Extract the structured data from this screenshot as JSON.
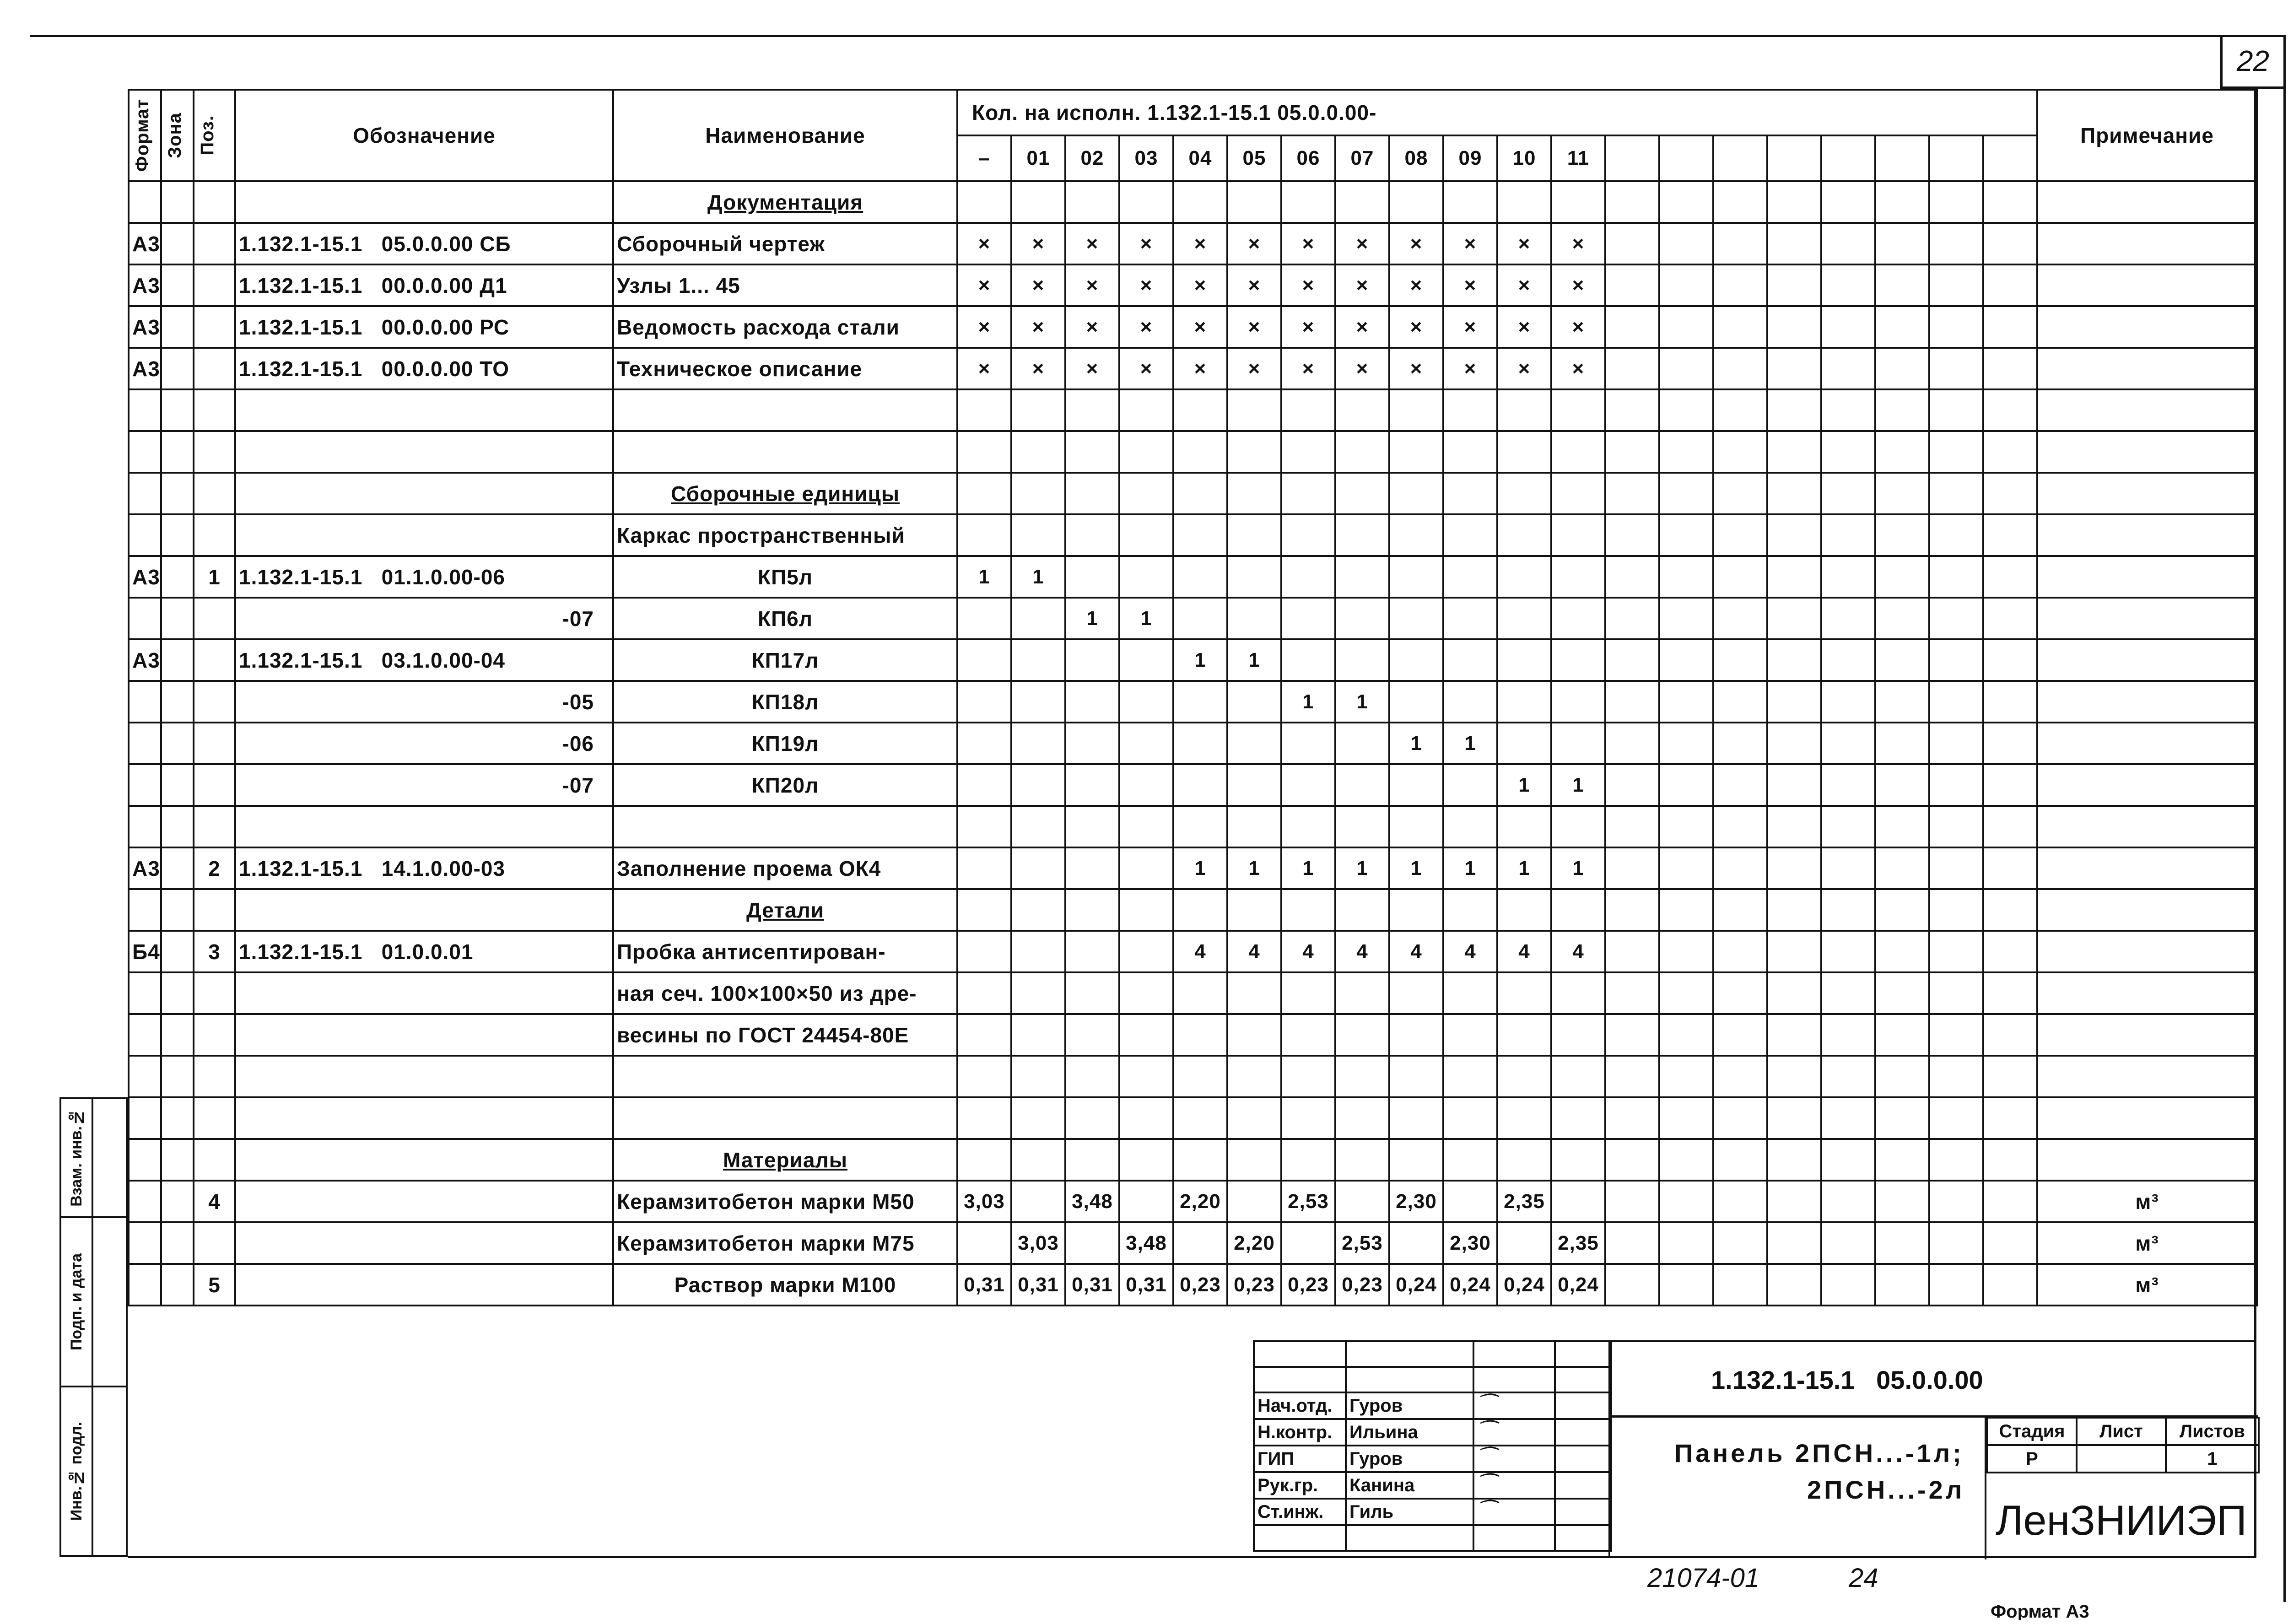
{
  "sheet_number": "22",
  "header": {
    "format": "Формат",
    "zone": "Зона",
    "pos": "Поз.",
    "designation": "Обозначение",
    "name": "Наименование",
    "qty_title": "Кол. на исполн. 1.132.1-15.1 05.0.0.00-",
    "variants": [
      "–",
      "01",
      "02",
      "03",
      "04",
      "05",
      "06",
      "07",
      "08",
      "09",
      "10",
      "11"
    ],
    "note": "Примечание"
  },
  "rows": [
    {
      "name": "Документация",
      "section": true
    },
    {
      "format": "А3",
      "code": "1.132.1-15.1   05.0.0.00 СБ",
      "name": "Сборочный чертеж",
      "qty": [
        "×",
        "×",
        "×",
        "×",
        "×",
        "×",
        "×",
        "×",
        "×",
        "×",
        "×",
        "×"
      ]
    },
    {
      "format": "А3",
      "code": "1.132.1-15.1   00.0.0.00 Д1",
      "name": "Узлы 1... 45",
      "qty": [
        "×",
        "×",
        "×",
        "×",
        "×",
        "×",
        "×",
        "×",
        "×",
        "×",
        "×",
        "×"
      ]
    },
    {
      "format": "А3",
      "code": "1.132.1-15.1   00.0.0.00 РС",
      "name": "Ведомость расхода стали",
      "qty": [
        "×",
        "×",
        "×",
        "×",
        "×",
        "×",
        "×",
        "×",
        "×",
        "×",
        "×",
        "×"
      ]
    },
    {
      "format": "А3",
      "code": "1.132.1-15.1   00.0.0.00 ТО",
      "name": "Техническое описание",
      "qty": [
        "×",
        "×",
        "×",
        "×",
        "×",
        "×",
        "×",
        "×",
        "×",
        "×",
        "×",
        "×"
      ]
    },
    {},
    {},
    {
      "name": "Сборочные единицы",
      "section": true
    },
    {
      "name": "Каркас пространственный"
    },
    {
      "format": "А3",
      "pos": "1",
      "code": "1.132.1-15.1   01.1.0.00-06",
      "name": "КП5л",
      "center": true,
      "qty": [
        "1",
        "1",
        "",
        "",
        "",
        "",
        "",
        "",
        "",
        "",
        "",
        ""
      ]
    },
    {
      "code": "-07",
      "right": true,
      "name": "КП6л",
      "center": true,
      "qty": [
        "",
        "",
        "1",
        "1",
        "",
        "",
        "",
        "",
        "",
        "",
        "",
        ""
      ]
    },
    {
      "format": "А3",
      "code": "1.132.1-15.1   03.1.0.00-04",
      "name": "КП17л",
      "center": true,
      "qty": [
        "",
        "",
        "",
        "",
        "1",
        "1",
        "",
        "",
        "",
        "",
        "",
        ""
      ]
    },
    {
      "code": "-05",
      "right": true,
      "name": "КП18л",
      "center": true,
      "qty": [
        "",
        "",
        "",
        "",
        "",
        "",
        "1",
        "1",
        "",
        "",
        "",
        ""
      ]
    },
    {
      "code": "-06",
      "right": true,
      "name": "КП19л",
      "center": true,
      "qty": [
        "",
        "",
        "",
        "",
        "",
        "",
        "",
        "",
        "1",
        "1",
        "",
        ""
      ]
    },
    {
      "code": "-07",
      "right": true,
      "name": "КП20л",
      "center": true,
      "qty": [
        "",
        "",
        "",
        "",
        "",
        "",
        "",
        "",
        "",
        "",
        "1",
        "1"
      ]
    },
    {},
    {
      "format": "А3",
      "pos": "2",
      "code": "1.132.1-15.1   14.1.0.00-03",
      "name": "Заполнение проема ОК4",
      "qty": [
        "",
        "",
        "",
        "",
        "1",
        "1",
        "1",
        "1",
        "1",
        "1",
        "1",
        "1"
      ]
    },
    {
      "name": "Детали",
      "section": true
    },
    {
      "format": "Б4",
      "pos": "3",
      "code": "1.132.1-15.1   01.0.0.01",
      "name": "Пробка антисептирован-",
      "qty": [
        "",
        "",
        "",
        "",
        "4",
        "4",
        "4",
        "4",
        "4",
        "4",
        "4",
        "4"
      ]
    },
    {
      "name": "ная сеч. 100×100×50 из дре-"
    },
    {
      "name": "весины по ГОСТ 24454-80Е"
    },
    {},
    {},
    {
      "name": "Материалы",
      "section": true
    },
    {
      "pos": "4",
      "name": "Керамзитобетон марки М50",
      "qty": [
        "3,03",
        "",
        "3,48",
        "",
        "2,20",
        "",
        "2,53",
        "",
        "2,30",
        "",
        "2,35",
        ""
      ],
      "note": "м³"
    },
    {
      "name": "Керамзитобетон марки М75",
      "qty": [
        "",
        "3,03",
        "",
        "3,48",
        "",
        "2,20",
        "",
        "2,53",
        "",
        "2,30",
        "",
        "2,35"
      ],
      "note": "м³"
    },
    {
      "pos": "5",
      "name": "Раствор марки М100",
      "center": true,
      "qty": [
        "0,31",
        "0,31",
        "0,31",
        "0,31",
        "0,23",
        "0,23",
        "0,23",
        "0,23",
        "0,24",
        "0,24",
        "0,24",
        "0,24"
      ],
      "note": "м³"
    }
  ],
  "side_stamp": {
    "replaced": "Взам. инв.№",
    "signed": "Подп. и дата",
    "original": "Инв.№ подл."
  },
  "title_block": {
    "document_code": "1.132.1-15.1   05.0.0.00",
    "signatures": [
      {
        "role": "Нач.отд.",
        "surname": "Гуров",
        "signature": "Гуров"
      },
      {
        "role": "Н.контр.",
        "surname": "Ильина",
        "signature": "Ильина"
      },
      {
        "role": "ГИП",
        "surname": "Гуров",
        "signature": "Гуров"
      },
      {
        "role": "Рук.гр.",
        "surname": "Канина",
        "signature": "Канина"
      },
      {
        "role": "Ст.инж.",
        "surname": "Гиль",
        "signature": "Гиль"
      }
    ],
    "title_line1": "Панель 2ПСН...-1л;",
    "title_line2": "2ПСН...-2л",
    "stage_label": "Стадия",
    "sheet_label": "Лист",
    "sheets_label": "Листов",
    "stage": "Р",
    "sheet": "",
    "sheets": "1",
    "organization": "ЛенЗНИИЭП"
  },
  "footer": {
    "archive_number": "21074-01",
    "page": "24",
    "format": "Формат А3"
  }
}
